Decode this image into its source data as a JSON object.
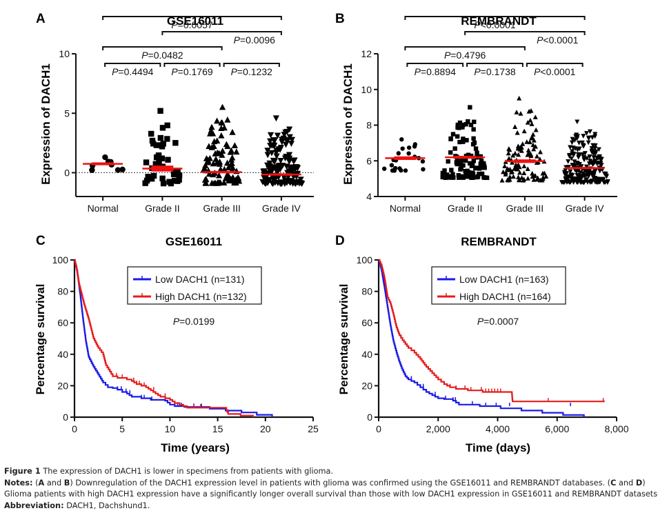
{
  "chart_data": [
    {
      "panel": "A",
      "type": "scatter",
      "title": "GSE16011",
      "ylabel": "Expression of DACH1",
      "xlabel": "",
      "categories": [
        "Normal",
        "Grade II",
        "Grade III",
        "Grade IV"
      ],
      "ylim": [
        -2,
        10
      ],
      "yticks": [
        0,
        5,
        10
      ],
      "reference_line": 0,
      "grid": false,
      "markers": [
        "circle",
        "square",
        "triangle-up",
        "triangle-down"
      ],
      "mean": [
        0.75,
        0.35,
        0.05,
        -0.15
      ],
      "sem": [
        0.12,
        0.25,
        0.1,
        0.1
      ],
      "n_points": [
        8,
        40,
        90,
        140
      ],
      "max_value": [
        1.3,
        5.2,
        5.5,
        4.6
      ],
      "min_value": [
        0.2,
        -0.9,
        -0.9,
        -0.9
      ],
      "comparisons": [
        {
          "groups": [
            "Normal",
            "Grade II"
          ],
          "label": "P=0.4494"
        },
        {
          "groups": [
            "Grade II",
            "Grade III"
          ],
          "label": "P=0.1769"
        },
        {
          "groups": [
            "Grade III",
            "Grade IV"
          ],
          "label": "P=0.1232"
        },
        {
          "groups": [
            "Normal",
            "Grade III"
          ],
          "label": "P=0.0482"
        },
        {
          "groups": [
            "Grade II",
            "Grade IV"
          ],
          "label": "P=0.0096"
        },
        {
          "groups": [
            "Normal",
            "Grade IV"
          ],
          "label": "P=0.0057"
        }
      ]
    },
    {
      "panel": "B",
      "type": "scatter",
      "title": "REMBRANDT",
      "ylabel": "Expression of DACH1",
      "xlabel": "",
      "categories": [
        "Normal",
        "Grade II",
        "Grade III",
        "Grade IV"
      ],
      "ylim": [
        4,
        12
      ],
      "yticks": [
        4,
        6,
        8,
        10,
        12
      ],
      "grid": false,
      "markers": [
        "circle",
        "square",
        "triangle-up",
        "triangle-down"
      ],
      "mean": [
        6.15,
        6.2,
        5.98,
        5.6
      ],
      "sem": [
        0.1,
        0.08,
        0.1,
        0.05
      ],
      "n_points": [
        21,
        100,
        100,
        220
      ],
      "max_value": [
        7.2,
        9.0,
        9.5,
        8.2
      ],
      "min_value": [
        5.45,
        5.05,
        4.9,
        4.8
      ],
      "comparisons": [
        {
          "groups": [
            "Normal",
            "Grade II"
          ],
          "label": "P=0.8894"
        },
        {
          "groups": [
            "Grade II",
            "Grade III"
          ],
          "label": "P=0.1738"
        },
        {
          "groups": [
            "Grade III",
            "Grade IV"
          ],
          "label": "P<0.0001"
        },
        {
          "groups": [
            "Normal",
            "Grade III"
          ],
          "label": "P=0.4796"
        },
        {
          "groups": [
            "Grade II",
            "Grade IV"
          ],
          "label": "P<0.0001"
        },
        {
          "groups": [
            "Normal",
            "Grade IV"
          ],
          "label": "P<0.0001"
        }
      ]
    },
    {
      "panel": "C",
      "type": "line",
      "title": "GSE16011",
      "xlabel": "Time (years)",
      "ylabel": "Percentage survival",
      "xlim": [
        0,
        25
      ],
      "ylim": [
        0,
        100
      ],
      "xticks": [
        0,
        5,
        10,
        15,
        20,
        25
      ],
      "yticks": [
        0,
        20,
        40,
        60,
        80,
        100
      ],
      "xtick_labels": [
        "0",
        "5",
        "10",
        "15",
        "20",
        "25"
      ],
      "legend": "top-center",
      "p_value": "P=0.0199",
      "series": [
        {
          "name": "Low DACH1 (n=131)",
          "color": "#1a1ae6",
          "x": [
            0,
            0.3,
            0.6,
            0.9,
            1.2,
            1.5,
            2.0,
            2.5,
            3.0,
            3.5,
            4.0,
            4.5,
            5.0,
            5.5,
            6.0,
            7.0,
            8.0,
            9.5,
            10.0,
            10.5,
            11.5,
            12.5,
            17.5,
            20.7
          ],
          "y": [
            100,
            92,
            78,
            62,
            48,
            38,
            32,
            27,
            22,
            19,
            18.5,
            17.5,
            16,
            15,
            13,
            12,
            11,
            10.5,
            8,
            7,
            6.5,
            6.5,
            3,
            0
          ],
          "censor_x": [
            4.5,
            4.9,
            5.4,
            5.8,
            7.0,
            7.3,
            8.1,
            10.8,
            11.2,
            12.5,
            13.3
          ]
        },
        {
          "name": "High DACH1 (n=132)",
          "color": "#e61a1a",
          "x": [
            0,
            0.2,
            0.5,
            1.0,
            1.5,
            2.0,
            2.5,
            3.0,
            3.3,
            3.7,
            4.0,
            4.5,
            5.0,
            6.0,
            6.5,
            7.0,
            7.5,
            8.0,
            8.5,
            9.0,
            10.0,
            10.5,
            11.0,
            11.8,
            15.8,
            16.1,
            18.7
          ],
          "y": [
            100,
            95,
            84,
            72,
            62,
            50,
            44,
            40,
            33,
            29,
            26,
            25,
            25,
            23,
            21,
            20,
            19,
            17,
            15,
            13,
            11,
            9,
            8,
            6,
            6,
            2,
            0
          ],
          "censor_x": [
            4.4,
            5.0,
            6.2,
            6.5,
            6.8,
            7.3,
            8.3,
            9.5,
            12.5,
            13.2
          ]
        }
      ]
    },
    {
      "panel": "D",
      "type": "line",
      "title": "REMBRANDT",
      "xlabel": "Time (days)",
      "ylabel": "Percentage survival",
      "xlim": [
        0,
        8000
      ],
      "ylim": [
        0,
        100
      ],
      "xticks": [
        0,
        2000,
        4000,
        6000,
        8000
      ],
      "yticks": [
        0,
        20,
        40,
        60,
        80,
        100
      ],
      "xtick_labels": [
        "0",
        "2,000",
        "4,000",
        "6,000",
        "8,000"
      ],
      "legend": "top-center",
      "p_value": "P=0.0007",
      "series": [
        {
          "name": "Low DACH1 (n=163)",
          "color": "#1a1ae6",
          "x": [
            0,
            100,
            200,
            300,
            400,
            500,
            600,
            700,
            800,
            900,
            1000,
            1200,
            1400,
            1600,
            1800,
            2000,
            2200,
            2500,
            2700,
            3300,
            3400,
            6900
          ],
          "y": [
            100,
            93,
            82,
            70,
            58,
            48,
            41,
            35,
            30,
            26,
            24,
            22,
            19,
            16,
            14,
            12,
            11.5,
            10.5,
            8,
            8,
            7,
            0
          ],
          "censor_x": [
            1100,
            1500,
            1900,
            2250,
            2500,
            2580,
            3150,
            3600,
            3950,
            4400,
            6450
          ]
        },
        {
          "name": "High DACH1 (n=164)",
          "color": "#e61a1a",
          "x": [
            0,
            100,
            200,
            300,
            400,
            500,
            600,
            700,
            800,
            1000,
            1200,
            1400,
            1600,
            1800,
            2000,
            2200,
            2400,
            2600,
            3000,
            3500,
            4480,
            4500,
            7600
          ],
          "y": [
            100,
            96,
            88,
            76,
            72,
            65,
            57,
            52,
            49,
            44,
            41,
            37,
            32,
            28,
            24,
            21,
            19,
            18,
            17,
            16,
            15,
            10,
            10
          ],
          "censor_x": [
            2400,
            2600,
            2900,
            3100,
            3450,
            3600,
            3700,
            3800,
            3900,
            4000,
            4100,
            5700,
            7550
          ]
        }
      ]
    }
  ],
  "panels": {
    "A": {
      "letter": "A",
      "title": "GSE16011",
      "ylabel": "Expression of DACH1"
    },
    "B": {
      "letter": "B",
      "title": "REMBRANDT",
      "ylabel": "Expression of DACH1"
    },
    "C": {
      "letter": "C",
      "title": "GSE16011",
      "ylabel": "Percentage survival",
      "xlabel": "Time (years)"
    },
    "D": {
      "letter": "D",
      "title": "REMBRANDT",
      "ylabel": "Percentage survival",
      "xlabel": "Time (days)"
    }
  },
  "caption": {
    "figure_label": "Figure 1",
    "figure_text": " The expression of DACH1 is lower in specimens from patients with glioma.",
    "notes_label": "Notes:",
    "notes_ab_open": " (",
    "notes_a": "A",
    "notes_and1": " and ",
    "notes_b": "B",
    "notes_text1": ") Downregulation of the DACH1 expression level in patients with glioma was confirmed using the GSE16011 and REMBRANDT databases. (",
    "notes_c": "C",
    "notes_and2": " and ",
    "notes_d": "D",
    "notes_close": ")",
    "notes_text2": "Glioma patients with high DACH1 expression have a significantly longer overall survival than those with low DACH1 expression in GSE16011 and REMBRANDT datasets.",
    "abbrev_label": "Abbreviation:",
    "abbrev_text": " DACH1, Dachshund1."
  }
}
